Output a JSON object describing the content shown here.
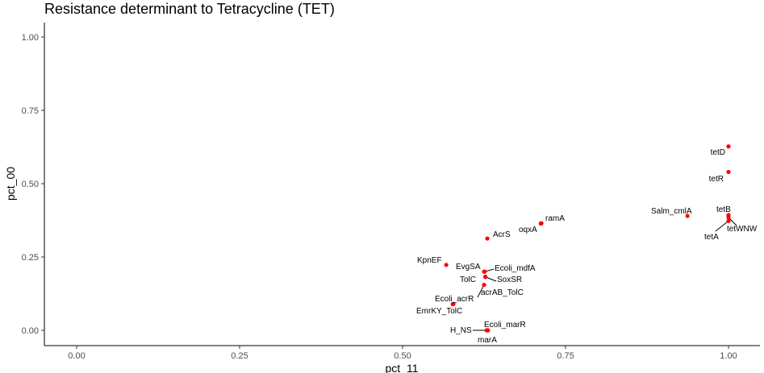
{
  "chart_data": {
    "type": "scatter",
    "title": "Resistance determinant to Tetracycline (TET)",
    "xlabel": "pct_11",
    "ylabel": "pct_00",
    "xlim": [
      -0.05,
      1.05
    ],
    "ylim": [
      -0.05,
      1.05
    ],
    "x_ticks": [
      "0.00",
      "0.25",
      "0.50",
      "0.75",
      "1.00"
    ],
    "y_ticks": [
      "0.00",
      "0.25",
      "0.50",
      "0.75",
      "1.00"
    ],
    "grid": false,
    "point_color": "#ff0000",
    "points": [
      {
        "label": "tetD",
        "x": 1.0,
        "y": 0.627
      },
      {
        "label": "tetR",
        "x": 1.0,
        "y": 0.54
      },
      {
        "label": "tetB",
        "x": 1.0,
        "y": 0.393
      },
      {
        "label": "tetWNW",
        "x": 1.0,
        "y": 0.385
      },
      {
        "label": "tetA",
        "x": 1.0,
        "y": 0.373
      },
      {
        "label": "Salm_cmlA",
        "x": 0.937,
        "y": 0.39
      },
      {
        "label": "ramA",
        "x": 0.713,
        "y": 0.365
      },
      {
        "label": "oqxA",
        "x": 0.712,
        "y": 0.364
      },
      {
        "label": "AcrS",
        "x": 0.63,
        "y": 0.313
      },
      {
        "label": "KpnEF",
        "x": 0.567,
        "y": 0.223
      },
      {
        "label": "EvgSA",
        "x": 0.625,
        "y": 0.2
      },
      {
        "label": "Ecoli_mdfA",
        "x": 0.626,
        "y": 0.2
      },
      {
        "label": "TolC",
        "x": 0.627,
        "y": 0.183
      },
      {
        "label": "SoxSR",
        "x": 0.627,
        "y": 0.182
      },
      {
        "label": "acrAB_TolC",
        "x": 0.625,
        "y": 0.155
      },
      {
        "label": "Ecoli_acrR",
        "x": 0.578,
        "y": 0.09
      },
      {
        "label": "EmrKY_TolC",
        "x": 0.577,
        "y": 0.089
      },
      {
        "label": "Ecoli_marR",
        "x": 0.63,
        "y": 0.0
      },
      {
        "label": "H_NS",
        "x": 0.629,
        "y": 0.0
      },
      {
        "label": "marA",
        "x": 0.631,
        "y": 0.0
      }
    ]
  }
}
